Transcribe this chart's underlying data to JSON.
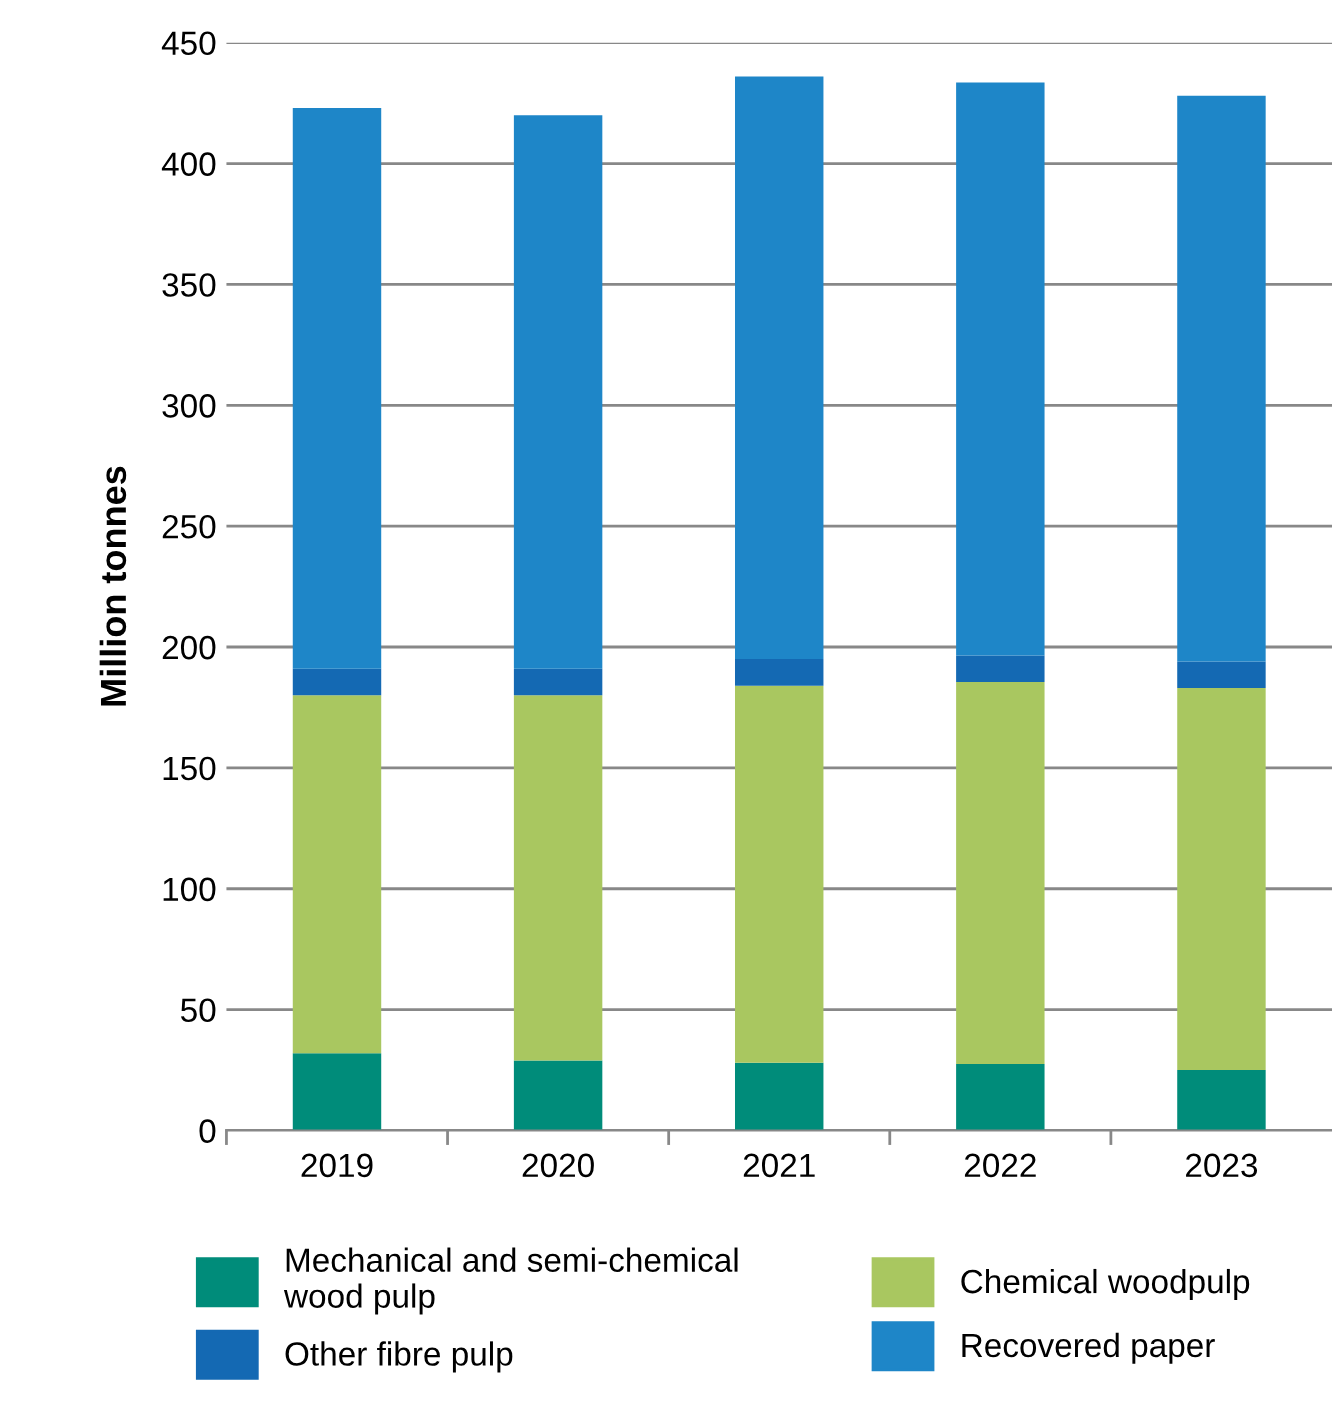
{
  "chart_data": {
    "type": "bar",
    "stacked": true,
    "ylabel": "Million tonnes",
    "categories": [
      "2019",
      "2020",
      "2021",
      "2022",
      "2023"
    ],
    "series": [
      {
        "name": "Mechanical and semi-chemical\nwood pulp",
        "color": "#008c7a",
        "values": [
          32,
          29,
          28,
          27.5,
          25
        ]
      },
      {
        "name": "Chemical woodpulp",
        "color": "#a9c760",
        "values": [
          148,
          151,
          156,
          158,
          158
        ]
      },
      {
        "name": "Other fibre pulp",
        "color": "#1469b3",
        "values": [
          11,
          11,
          11,
          11,
          11
        ]
      },
      {
        "name": "Recovered paper",
        "color": "#1e86c8",
        "values": [
          232,
          229,
          241,
          237,
          234
        ]
      }
    ],
    "ylim": [
      0,
      450
    ],
    "yticks": [
      0,
      50,
      100,
      150,
      200,
      250,
      300,
      350,
      400,
      450
    ],
    "grid": "y",
    "legend": "bottom"
  }
}
